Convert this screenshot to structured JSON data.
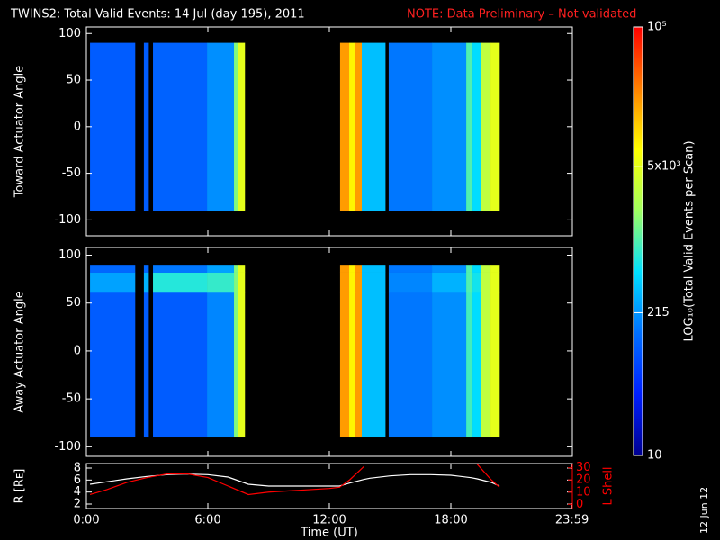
{
  "title": "TWINS2: Total Valid Events: 14 Jul (day 195), 2011",
  "note": "NOTE: Data Preliminary – Not validated",
  "date_stamp": "12 Jun 12",
  "colorbar": {
    "label": "LOG₁₀(Total Valid Events per Scan)",
    "log": true,
    "zlim": [
      10,
      100000
    ],
    "zticks": [
      10,
      215,
      {
        "value": 5000,
        "label": "5x10³"
      },
      {
        "value": 100000,
        "label": "10⁵"
      }
    ],
    "colorscale": [
      "#000090",
      "#0020ff",
      "#0070ff",
      "#00e0ff",
      "#a0ff60",
      "#ffff00",
      "#ff8000",
      "#ff0000"
    ]
  },
  "chart_data": [
    {
      "type": "heatmap",
      "ylabel": "Toward Actuator Angle",
      "xlim": [
        0,
        24
      ],
      "xticks": [
        0,
        6,
        12,
        18
      ],
      "ylim": [
        -117,
        107
      ],
      "yticks": [
        -100,
        -50,
        0,
        50,
        100
      ],
      "ybins": [
        -90,
        90
      ],
      "xbins": [
        0.18,
        2.4,
        2.84,
        3.07,
        3.29,
        5.96,
        7.29,
        7.51,
        7.82,
        12.53,
        12.98,
        13.29,
        13.6,
        14.76,
        14.93,
        17.07,
        18.76,
        19.07,
        19.51,
        19.96,
        20.4
      ],
      "values": [
        [
          100,
          null,
          100,
          null,
          110,
          200,
          1500,
          5000,
          null,
          20000,
          8000,
          20000,
          350,
          null,
          150,
          200,
          1000,
          500,
          3000,
          5000
        ]
      ]
    },
    {
      "type": "heatmap",
      "ylabel": "Away Actuator Angle",
      "xlim": [
        0,
        24
      ],
      "xticks": [
        0,
        6,
        12,
        18
      ],
      "ylim": [
        -110,
        108
      ],
      "yticks": [
        -100,
        -50,
        0,
        50,
        100
      ],
      "ybins": [
        -90,
        62,
        82,
        90
      ],
      "xbins": [
        0.18,
        2.4,
        2.84,
        3.07,
        3.29,
        5.96,
        7.29,
        7.51,
        7.82,
        12.53,
        12.98,
        13.29,
        13.6,
        14.76,
        14.93,
        17.07,
        18.76,
        19.07,
        19.51,
        19.96,
        20.4
      ],
      "values": [
        [
          100,
          null,
          100,
          null,
          100,
          180,
          1500,
          5000,
          null,
          20000,
          8000,
          20000,
          350,
          null,
          150,
          200,
          900,
          500,
          3000,
          5000
        ],
        [
          250,
          null,
          300,
          null,
          700,
          800,
          1500,
          5000,
          null,
          20000,
          8000,
          20000,
          350,
          null,
          180,
          300,
          1000,
          600,
          3000,
          5000
        ],
        [
          120,
          null,
          120,
          null,
          150,
          250,
          1500,
          5000,
          null,
          20000,
          8000,
          20000,
          350,
          null,
          150,
          200,
          1000,
          500,
          3000,
          5000
        ]
      ]
    },
    {
      "type": "line",
      "ylabel": "R [Rᴇ]",
      "y2label": "L Shell",
      "xlabel": "Time (UT)",
      "xlim": [
        0,
        24
      ],
      "xticks": [
        {
          "value": 0,
          "label": "0:00"
        },
        {
          "value": 6,
          "label": "6:00"
        },
        {
          "value": 12,
          "label": "12:00"
        },
        {
          "value": 18,
          "label": "18:00"
        },
        {
          "value": 23.98,
          "label": "23:59"
        }
      ],
      "ylim": [
        1.25,
        8.75
      ],
      "yticks": [
        2,
        4,
        6,
        8
      ],
      "y2lim": [
        -3.5,
        33.5
      ],
      "y2ticks": [
        0,
        10,
        20,
        30
      ],
      "x": [
        0.18,
        1,
        2,
        3,
        4,
        5,
        6,
        7,
        8,
        9,
        10,
        11,
        12,
        12.5,
        13,
        13.7,
        14,
        15,
        16,
        17,
        18,
        19,
        19.3,
        20,
        20.4
      ],
      "series": [
        {
          "name": "R",
          "color": "#ffffff",
          "values": [
            5.3,
            5.7,
            6.2,
            6.6,
            6.9,
            7.0,
            6.9,
            6.5,
            5.3,
            5.0,
            5.0,
            5.0,
            5.0,
            5.0,
            5.5,
            6.1,
            6.3,
            6.7,
            6.9,
            6.9,
            6.8,
            6.4,
            6.2,
            5.6,
            5.0
          ]
        },
        {
          "name": "L",
          "color": "#ff0000",
          "axis": "y2",
          "values": [
            8,
            12,
            18,
            22,
            25,
            25,
            22,
            15,
            8,
            10,
            11,
            12,
            13,
            14,
            20,
            31,
            null,
            null,
            null,
            null,
            null,
            null,
            33,
            20,
            14
          ]
        }
      ]
    }
  ]
}
